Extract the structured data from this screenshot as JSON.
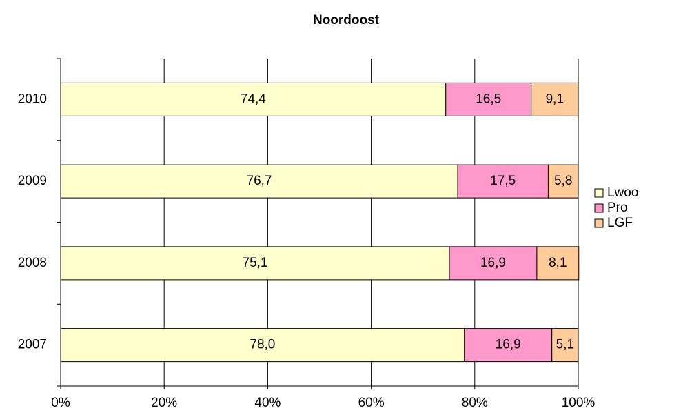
{
  "chart_data": {
    "type": "bar",
    "orientation": "horizontal",
    "stacked": true,
    "title": "Noordoost",
    "categories": [
      "2007",
      "2008",
      "2009",
      "2010"
    ],
    "series": [
      {
        "name": "Lwoo",
        "color": "#FFFFCC",
        "values": [
          78.0,
          75.1,
          76.7,
          74.4
        ],
        "value_labels": [
          "78,0",
          "75,1",
          "76,7",
          "74,4"
        ]
      },
      {
        "name": "Pro",
        "color": "#FF99CC",
        "values": [
          16.9,
          16.9,
          17.5,
          16.5
        ],
        "value_labels": [
          "16,9",
          "16,9",
          "17,5",
          "16,5"
        ]
      },
      {
        "name": "LGF",
        "color": "#FFCC99",
        "values": [
          5.1,
          8.1,
          5.8,
          9.1
        ],
        "value_labels": [
          "5,1",
          "8,1",
          "5,8",
          "9,1"
        ]
      }
    ],
    "xlim": [
      0,
      100
    ],
    "xticks": [
      {
        "value": 0,
        "label": "0%"
      },
      {
        "value": 20,
        "label": "20%"
      },
      {
        "value": 40,
        "label": "40%"
      },
      {
        "value": 60,
        "label": "60%"
      },
      {
        "value": 80,
        "label": "80%"
      },
      {
        "value": 100,
        "label": "100%"
      }
    ],
    "grid": true,
    "legend": "right"
  }
}
